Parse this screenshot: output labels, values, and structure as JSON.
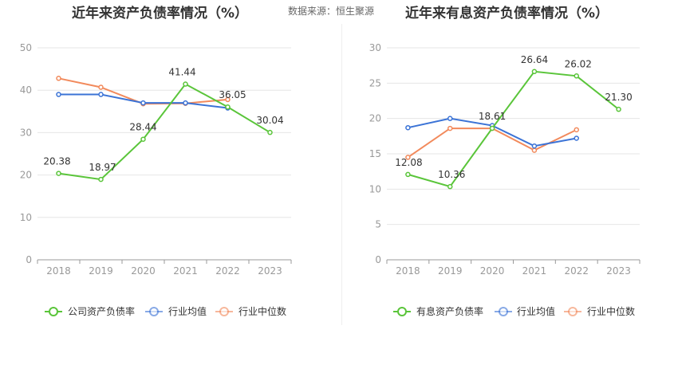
{
  "source_note": "数据来源：恒生聚源",
  "colors": {
    "company": "#5ac53a",
    "avg": "#3b73d6",
    "median": "#f28a5c",
    "grid": "#e6e6e6",
    "axis": "#999999"
  },
  "chart_data": [
    {
      "type": "line",
      "title": "近年来资产负债率情况（%）",
      "categories": [
        "2018",
        "2019",
        "2020",
        "2021",
        "2022",
        "2023"
      ],
      "ylim": [
        0,
        50
      ],
      "yticks": [
        0,
        10,
        20,
        30,
        40,
        50
      ],
      "grid": true,
      "legend_position": "bottom",
      "series": [
        {
          "name": "公司资产负债率",
          "key": "company",
          "values": [
            20.38,
            18.97,
            28.44,
            41.44,
            36.05,
            30.04
          ],
          "labels": [
            "20.38",
            "18.97",
            "28.44",
            "41.44",
            "36.05",
            "30.04"
          ]
        },
        {
          "name": "行业均值",
          "key": "avg",
          "values": [
            39,
            39,
            37,
            37,
            35.8,
            null
          ]
        },
        {
          "name": "行业中位数",
          "key": "median",
          "values": [
            42.8,
            40.7,
            36.8,
            36.9,
            37.8,
            null
          ]
        }
      ]
    },
    {
      "type": "line",
      "title": "近年来有息资产负债率情况（%）",
      "categories": [
        "2018",
        "2019",
        "2020",
        "2021",
        "2022",
        "2023"
      ],
      "ylim": [
        0,
        30
      ],
      "yticks": [
        0,
        5,
        10,
        15,
        20,
        25,
        30
      ],
      "grid": true,
      "legend_position": "bottom",
      "series": [
        {
          "name": "有息资产负债率",
          "key": "company",
          "values": [
            12.08,
            10.36,
            18.61,
            26.64,
            26.02,
            21.3
          ],
          "labels": [
            "12.08",
            "10.36",
            "18.61",
            "26.64",
            "26.02",
            "21.30"
          ]
        },
        {
          "name": "行业均值",
          "key": "avg",
          "values": [
            18.7,
            20.0,
            19.0,
            16.1,
            17.2,
            null
          ]
        },
        {
          "name": "行业中位数",
          "key": "median",
          "values": [
            14.5,
            18.6,
            18.6,
            15.5,
            18.4,
            null
          ]
        }
      ]
    }
  ]
}
